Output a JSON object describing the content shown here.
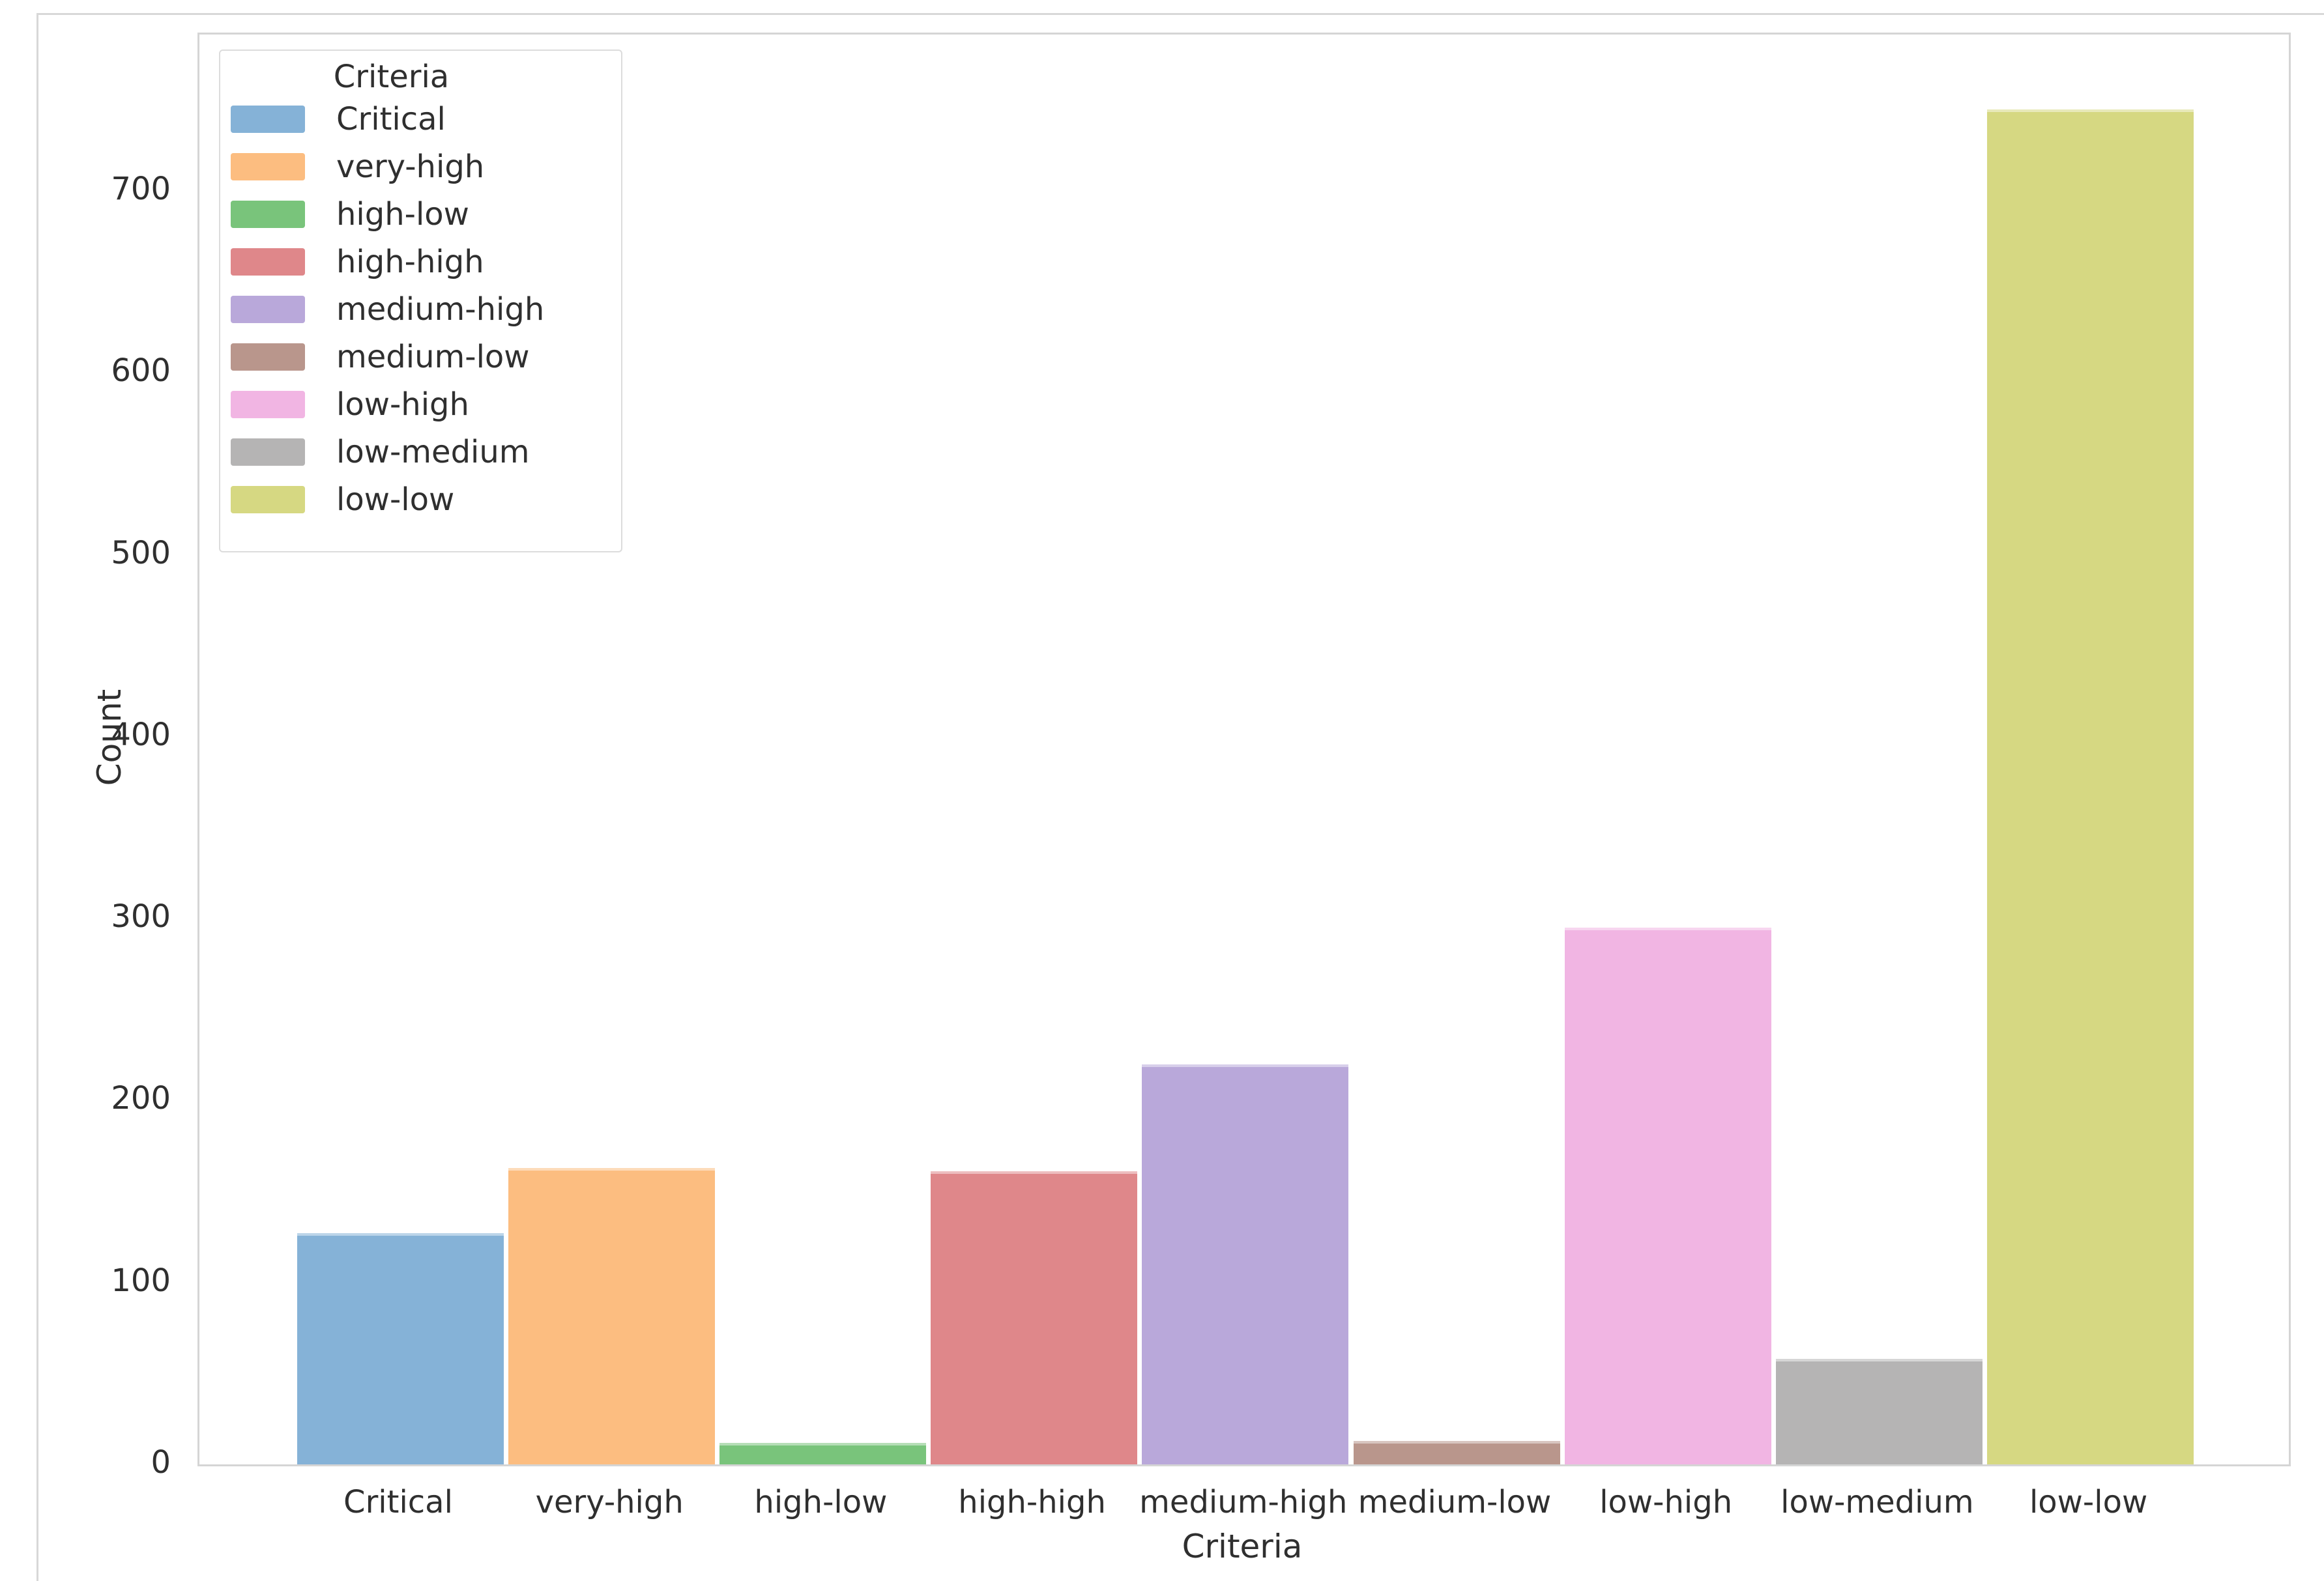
{
  "chart_data": {
    "type": "bar",
    "title": "",
    "xlabel": "Criteria",
    "ylabel": "Count",
    "categories": [
      "Critical",
      "very-high",
      "high-low",
      "high-high",
      "medium-high",
      "medium-low",
      "low-high",
      "low-medium",
      "low-low"
    ],
    "values": [
      127,
      163,
      12,
      161,
      220,
      13,
      295,
      58,
      745
    ],
    "colors": [
      "#85b2d7",
      "#fcbd80",
      "#79c47b",
      "#df878a",
      "#b9a8da",
      "#b9968c",
      "#f1b5e3",
      "#b5b4b4",
      "#d6d882"
    ],
    "yticks": [
      0,
      100,
      200,
      300,
      400,
      500,
      600,
      700
    ],
    "ylim": [
      0,
      786
    ],
    "grid": false,
    "legend": {
      "title": "Criteria",
      "position": "upper left",
      "entries": [
        "Critical",
        "very-high",
        "high-low",
        "high-high",
        "medium-high",
        "medium-low",
        "low-high",
        "low-medium",
        "low-low"
      ]
    }
  }
}
